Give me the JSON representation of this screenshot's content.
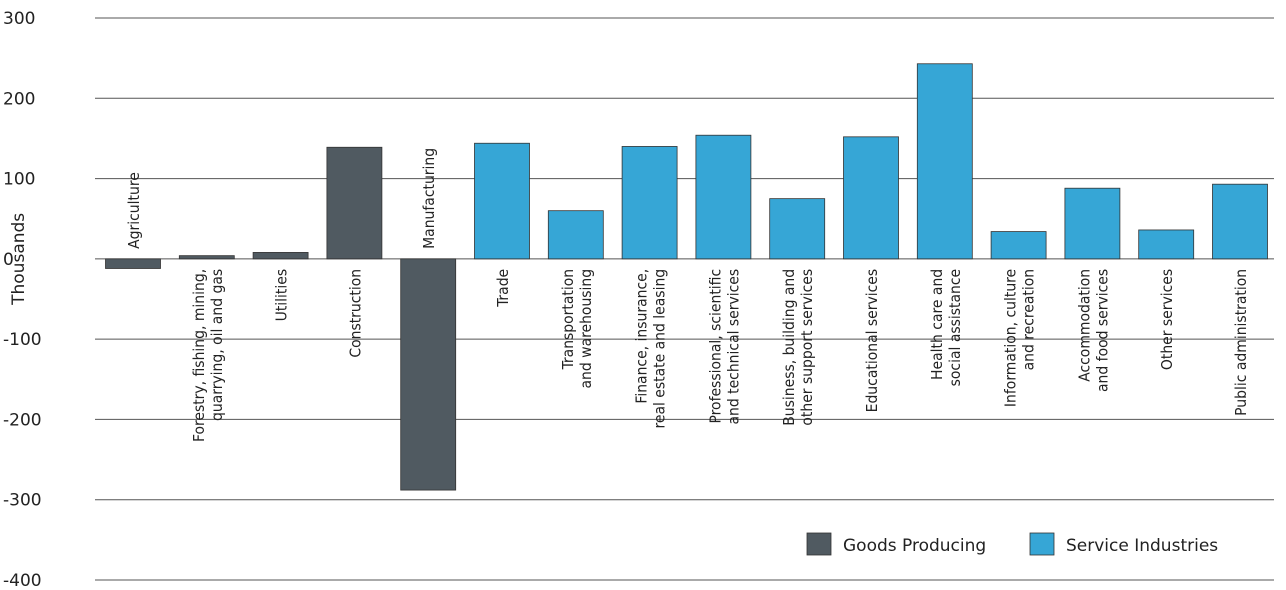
{
  "chart_data": {
    "type": "bar",
    "ylabel": "Thousands",
    "ylim": [
      -400,
      300
    ],
    "yticks": [
      300,
      200,
      100,
      0,
      -100,
      -200,
      -300,
      -400
    ],
    "grid": true,
    "legend_position": "bottom-right",
    "series": [
      {
        "name": "Goods Producing",
        "color": "#505a61"
      },
      {
        "name": "Service Industries",
        "color": "#36a6d6"
      }
    ],
    "bars": [
      {
        "lines": [
          "Agriculture"
        ],
        "value": -12,
        "series": 0
      },
      {
        "lines": [
          "Forestry, fishing, mining,",
          "quarrying, oil and gas"
        ],
        "value": 4,
        "series": 0
      },
      {
        "lines": [
          "Utilities"
        ],
        "value": 8,
        "series": 0
      },
      {
        "lines": [
          "Construction"
        ],
        "value": 139,
        "series": 0
      },
      {
        "lines": [
          "Manufacturing"
        ],
        "value": -288,
        "series": 0
      },
      {
        "lines": [
          "Trade"
        ],
        "value": 144,
        "series": 1
      },
      {
        "lines": [
          "Transportation",
          "and warehousing"
        ],
        "value": 60,
        "series": 1
      },
      {
        "lines": [
          "Finance, insurance,",
          "real estate and leasing"
        ],
        "value": 140,
        "series": 1
      },
      {
        "lines": [
          "Professional, scientific",
          "and technical services"
        ],
        "value": 154,
        "series": 1
      },
      {
        "lines": [
          "Business, building and",
          "other support services"
        ],
        "value": 75,
        "series": 1
      },
      {
        "lines": [
          "Educational services"
        ],
        "value": 152,
        "series": 1
      },
      {
        "lines": [
          "Health care and",
          "social assistance"
        ],
        "value": 243,
        "series": 1
      },
      {
        "lines": [
          "Information, culture",
          "and recreation"
        ],
        "value": 34,
        "series": 1
      },
      {
        "lines": [
          "Accommodation",
          "and food services"
        ],
        "value": 88,
        "series": 1
      },
      {
        "lines": [
          "Other services"
        ],
        "value": 36,
        "series": 1
      },
      {
        "lines": [
          "Public administration"
        ],
        "value": 93,
        "series": 1
      }
    ]
  }
}
